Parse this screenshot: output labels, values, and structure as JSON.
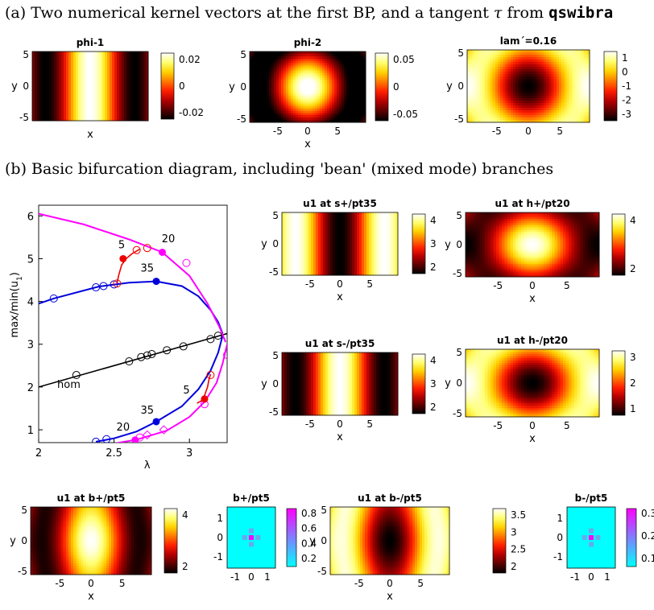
{
  "caption_a": {
    "before": "(a) Two numerical kernel vectors at the first BP, and a tangent ",
    "tau": "τ",
    "from": " from ",
    "code": "qswibra"
  },
  "caption_b": "(b) Basic bifurcation diagram, including 'bean' (mixed mode) branches",
  "colormaps": {
    "hot": [
      "#000000",
      "#5a0000",
      "#b40000",
      "#ff1e00",
      "#ff7800",
      "#ffd200",
      "#ffff70",
      "#ffffff"
    ],
    "cool": [
      "#00ffff",
      "#55aaff",
      "#aa55ff",
      "#ff00ff"
    ]
  },
  "axis_labels": {
    "x": "x",
    "y": "y"
  },
  "heatmaps": [
    {
      "id": "phi1",
      "title": "phi-1",
      "pattern": "stripes",
      "xticks": [],
      "yticks": [
        "5",
        "0",
        "-5"
      ],
      "show_xlabel": true,
      "cbar_ticks": [
        "0.02",
        "0",
        "-0.02"
      ],
      "clim": [
        -0.03,
        0.03
      ]
    },
    {
      "id": "phi2",
      "title": "phi-2",
      "pattern": "spots",
      "xticks": [
        "-5",
        "0",
        "5"
      ],
      "yticks": [
        "5",
        "0",
        "-5"
      ],
      "show_xlabel": true,
      "cbar_ticks": [
        "0.05",
        "0",
        "-0.05"
      ],
      "clim": [
        -0.06,
        0.06
      ]
    },
    {
      "id": "lam",
      "title": "lam´=0.16",
      "pattern": "hexdark",
      "xticks": [
        "-5",
        "0",
        "5"
      ],
      "yticks": [
        "5",
        "0",
        "-5"
      ],
      "show_xlabel": false,
      "cbar_ticks": [
        "1",
        "0",
        "-1",
        "-2",
        "-3"
      ],
      "clim": [
        -3.3,
        1.5
      ]
    },
    {
      "id": "s_plus",
      "title": "u1 at s+/pt35",
      "pattern": "stripes_dark",
      "xticks": [
        "-5",
        "0",
        "5"
      ],
      "yticks": [
        "5",
        "0",
        "-5"
      ],
      "show_xlabel": true,
      "cbar_ticks": [
        "4",
        "3",
        "2"
      ],
      "clim": [
        1.2,
        4.6
      ]
    },
    {
      "id": "h_plus",
      "title": "u1 at h+/pt20",
      "pattern": "hexbright",
      "xticks": [
        "-5",
        "0",
        "5"
      ],
      "yticks": [
        "5",
        "0",
        "-5"
      ],
      "show_xlabel": true,
      "cbar_ticks": [
        "4",
        "2"
      ],
      "clim": [
        0.9,
        5.4
      ]
    },
    {
      "id": "s_minus",
      "title": "u1 at s-/pt35",
      "pattern": "stripes",
      "xticks": [
        "-5",
        "0",
        "5"
      ],
      "yticks": [
        "5",
        "0",
        "-5"
      ],
      "show_xlabel": true,
      "cbar_ticks": [
        "4",
        "3",
        "2"
      ],
      "clim": [
        1.2,
        4.6
      ]
    },
    {
      "id": "h_minus",
      "title": "u1 at h-/pt20",
      "pattern": "hexdark",
      "xticks": [
        "-5",
        "0",
        "5"
      ],
      "yticks": [
        "5",
        "0",
        "-5"
      ],
      "show_xlabel": true,
      "cbar_ticks": [
        "3",
        "2",
        "1"
      ],
      "clim": [
        0.8,
        3.9
      ]
    },
    {
      "id": "b_plus",
      "title": "u1 at b+/pt5",
      "pattern": "bean_bright",
      "xticks": [
        "-5",
        "0",
        "5"
      ],
      "yticks": [
        "5",
        "0",
        "-5"
      ],
      "show_xlabel": true,
      "cbar_ticks": [
        "4",
        "2"
      ],
      "clim": [
        0.9,
        5.4
      ]
    },
    {
      "id": "b_minus",
      "title": "u1 at b-/pt5",
      "pattern": "bean_dark",
      "xticks": [
        "-5",
        "0",
        "5"
      ],
      "yticks": [
        "5",
        "0",
        "-5"
      ],
      "show_xlabel": true,
      "cbar_ticks": [
        "3.5",
        "3",
        "2.5",
        "2"
      ],
      "clim": [
        1.8,
        3.9
      ]
    }
  ],
  "grids": [
    {
      "id": "bp_plus",
      "title": "b+/pt5",
      "xticks": [
        "-1",
        "0",
        "1"
      ],
      "yticks": [
        "1",
        "0",
        "-1"
      ],
      "cbar_ticks": [
        "0.8",
        "0.6",
        "0.4",
        "0.2"
      ],
      "cells": [
        [
          0,
          -0.6,
          0
        ],
        [
          -0.6,
          1,
          -0.6
        ],
        [
          0,
          -0.6,
          0
        ]
      ]
    },
    {
      "id": "bp_minus",
      "title": "b-/pt5",
      "xticks": [
        "-1",
        "0",
        "1"
      ],
      "yticks": [
        "1",
        "0",
        "-1"
      ],
      "cbar_ticks": [
        "0.3",
        "0.2",
        "0.1"
      ],
      "cells": [
        [
          0,
          -0.6,
          0
        ],
        [
          -0.6,
          1,
          -0.6
        ],
        [
          0,
          -0.6,
          0
        ]
      ]
    }
  ],
  "chart_data": {
    "type": "line",
    "title": "",
    "xlabel": "λ",
    "ylabel": "max/min(u",
    "ylabel_sub": "1",
    "ylabel_close": ")",
    "xlim": [
      2,
      3.25
    ],
    "ylim": [
      0.7,
      6.25
    ],
    "xticks": [
      2,
      2.5,
      3
    ],
    "yticks": [
      1,
      2,
      3,
      4,
      5,
      6
    ],
    "grid": false,
    "series": [
      {
        "name": "hom",
        "color": "#000000",
        "x": [
          2,
          3.25
        ],
        "y": [
          2.0,
          3.25
        ],
        "markers": [
          [
            2.25,
            2.28
          ],
          [
            2.6,
            2.6
          ],
          [
            2.68,
            2.7
          ],
          [
            2.72,
            2.74
          ],
          [
            2.75,
            2.77
          ],
          [
            2.85,
            2.86
          ],
          [
            2.96,
            2.95
          ],
          [
            3.14,
            3.12
          ],
          [
            3.19,
            3.2
          ]
        ]
      },
      {
        "name": "s+",
        "color": "#0000dd",
        "x": [
          2.0,
          2.1,
          2.4,
          2.6,
          2.78,
          2.95,
          3.06,
          3.14,
          3.19,
          3.22
        ],
        "y": [
          3.95,
          4.07,
          4.35,
          4.44,
          4.47,
          4.36,
          4.12,
          3.8,
          3.52,
          3.25
        ],
        "markers": [
          [
            2.1,
            4.07
          ],
          [
            2.38,
            4.33
          ],
          [
            2.43,
            4.36
          ],
          [
            2.5,
            4.4
          ]
        ],
        "dot": [
          2.78,
          4.47
        ],
        "label": "35",
        "label_at": [
          2.72,
          4.7
        ]
      },
      {
        "name": "s-",
        "color": "#0000dd",
        "x": [
          2.38,
          2.5,
          2.65,
          2.78,
          2.95,
          3.06,
          3.14,
          3.19,
          3.22
        ],
        "y": [
          0.72,
          0.8,
          0.96,
          1.19,
          1.55,
          1.95,
          2.38,
          2.8,
          3.2
        ],
        "markers": [
          [
            2.38,
            0.72
          ],
          [
            2.45,
            0.78
          ]
        ],
        "dot": [
          2.78,
          1.19
        ],
        "label": "35",
        "label_at": [
          2.72,
          1.38
        ]
      },
      {
        "name": "h+",
        "color": "#ff00ff",
        "x": [
          2.0,
          2.3,
          2.6,
          2.82,
          3.0,
          3.12,
          3.2,
          3.24
        ],
        "y": [
          6.05,
          5.8,
          5.45,
          5.15,
          4.6,
          3.95,
          3.4,
          3.05
        ],
        "markers": [
          [
            2.98,
            4.9
          ]
        ],
        "dot": [
          2.82,
          5.15
        ],
        "label": "20",
        "label_at": [
          2.86,
          5.38
        ]
      },
      {
        "name": "h-",
        "color": "#ff00ff",
        "x": [
          2.5,
          2.65,
          2.85,
          3.0,
          3.1,
          3.18,
          3.22,
          3.25
        ],
        "y": [
          0.68,
          0.77,
          0.98,
          1.3,
          1.65,
          2.1,
          2.55,
          3.0
        ],
        "markers": [
          [
            2.67,
            0.82
          ],
          [
            3.1,
            1.6
          ],
          [
            3.25,
            2.75
          ]
        ],
        "diamonds": [
          [
            2.72,
            0.88
          ],
          [
            2.83,
            1.0
          ]
        ],
        "dot": [
          2.64,
          0.76
        ],
        "label": "20",
        "label_at": [
          2.56,
          0.98
        ]
      },
      {
        "name": "b+",
        "color": "#ee0000",
        "x": [
          2.52,
          2.53,
          2.55,
          2.58,
          2.62,
          2.67
        ],
        "y": [
          4.42,
          4.6,
          4.85,
          5.0,
          5.12,
          5.22
        ],
        "markers": [
          [
            2.52,
            4.42
          ],
          [
            2.65,
            5.2
          ],
          [
            2.72,
            5.25
          ]
        ],
        "dot": [
          2.56,
          5.0
        ],
        "label": "5",
        "label_at": [
          2.55,
          5.24
        ]
      },
      {
        "name": "b-",
        "color": "#ee0000",
        "x": [
          3.05,
          3.08,
          3.1,
          3.12,
          3.13,
          3.14
        ],
        "y": [
          1.62,
          1.68,
          1.8,
          2.0,
          2.18,
          2.3
        ],
        "markers": [
          [
            3.14,
            2.28
          ]
        ],
        "dot": [
          3.1,
          1.72
        ],
        "label": "5",
        "label_at": [
          2.98,
          1.85
        ]
      }
    ],
    "annotations": [
      {
        "text": "hom",
        "at": [
          2.2,
          1.98
        ]
      }
    ]
  }
}
